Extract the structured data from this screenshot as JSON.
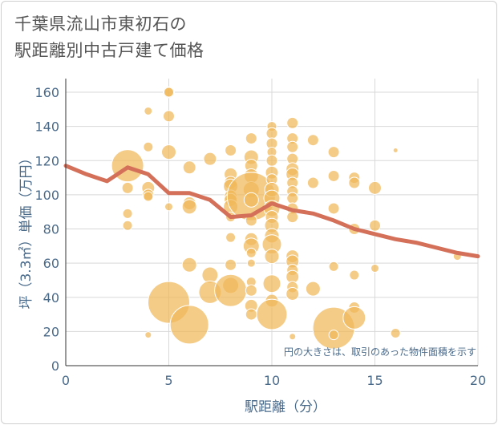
{
  "title_lines": [
    "千葉県流山市東初石の",
    "駅距離別中古戸建て価格"
  ],
  "chart_data": {
    "type": "scatter",
    "xlabel": "駅距離（分）",
    "ylabel": "坪（3.3㎡）単価（万円）",
    "xlim": [
      0,
      20
    ],
    "ylim": [
      0,
      168
    ],
    "x_ticks": [
      "0",
      "5",
      "10",
      "15",
      "20"
    ],
    "y_ticks": [
      "0",
      "20",
      "40",
      "60",
      "80",
      "100",
      "120",
      "140",
      "160"
    ],
    "grid": true,
    "annotation": "円の大きさは、取引のあった物件面積を示す",
    "bubble_color": "#f0b95a",
    "line_color": "#d4705a",
    "bubbles": [
      {
        "x": 3,
        "y": 117,
        "s": 20
      },
      {
        "x": 3,
        "y": 104,
        "s": 7
      },
      {
        "x": 3,
        "y": 89,
        "s": 6
      },
      {
        "x": 3,
        "y": 82,
        "s": 6
      },
      {
        "x": 4,
        "y": 149,
        "s": 5
      },
      {
        "x": 4,
        "y": 128,
        "s": 6
      },
      {
        "x": 4,
        "y": 104,
        "s": 8
      },
      {
        "x": 4,
        "y": 100,
        "s": 7
      },
      {
        "x": 4,
        "y": 99,
        "s": 6
      },
      {
        "x": 4,
        "y": 18,
        "s": 4
      },
      {
        "x": 5,
        "y": 160,
        "s": 7
      },
      {
        "x": 5,
        "y": 160,
        "s": 6
      },
      {
        "x": 5,
        "y": 146,
        "s": 7
      },
      {
        "x": 5,
        "y": 125,
        "s": 9
      },
      {
        "x": 5,
        "y": 93,
        "s": 5
      },
      {
        "x": 5,
        "y": 37,
        "s": 26
      },
      {
        "x": 6,
        "y": 116,
        "s": 8
      },
      {
        "x": 6,
        "y": 95,
        "s": 8
      },
      {
        "x": 6,
        "y": 93,
        "s": 9
      },
      {
        "x": 6,
        "y": 59,
        "s": 9
      },
      {
        "x": 6,
        "y": 24,
        "s": 24
      },
      {
        "x": 7,
        "y": 121,
        "s": 8
      },
      {
        "x": 7,
        "y": 53,
        "s": 10
      },
      {
        "x": 7,
        "y": 43,
        "s": 14
      },
      {
        "x": 8,
        "y": 126,
        "s": 7
      },
      {
        "x": 8,
        "y": 112,
        "s": 8
      },
      {
        "x": 8,
        "y": 107,
        "s": 8
      },
      {
        "x": 8,
        "y": 105,
        "s": 9
      },
      {
        "x": 8,
        "y": 99,
        "s": 8
      },
      {
        "x": 8,
        "y": 97,
        "s": 8
      },
      {
        "x": 8,
        "y": 93,
        "s": 9
      },
      {
        "x": 8,
        "y": 87,
        "s": 6
      },
      {
        "x": 8,
        "y": 75,
        "s": 6
      },
      {
        "x": 8,
        "y": 59,
        "s": 7
      },
      {
        "x": 8,
        "y": 47,
        "s": 10
      },
      {
        "x": 8,
        "y": 44,
        "s": 20
      },
      {
        "x": 9,
        "y": 133,
        "s": 7
      },
      {
        "x": 9,
        "y": 122,
        "s": 9
      },
      {
        "x": 9,
        "y": 117,
        "s": 8
      },
      {
        "x": 9,
        "y": 111,
        "s": 9
      },
      {
        "x": 9,
        "y": 103,
        "s": 10
      },
      {
        "x": 9,
        "y": 99,
        "s": 30
      },
      {
        "x": 9,
        "y": 97,
        "s": 9
      },
      {
        "x": 9,
        "y": 85,
        "s": 7
      },
      {
        "x": 9,
        "y": 74,
        "s": 8
      },
      {
        "x": 9,
        "y": 70,
        "s": 10
      },
      {
        "x": 9,
        "y": 66,
        "s": 6
      },
      {
        "x": 9,
        "y": 60,
        "s": 5
      },
      {
        "x": 9,
        "y": 49,
        "s": 6
      },
      {
        "x": 9,
        "y": 44,
        "s": 7
      },
      {
        "x": 9,
        "y": 35,
        "s": 8
      },
      {
        "x": 9,
        "y": 30,
        "s": 7
      },
      {
        "x": 10,
        "y": 140,
        "s": 6
      },
      {
        "x": 10,
        "y": 136,
        "s": 7
      },
      {
        "x": 10,
        "y": 130,
        "s": 7
      },
      {
        "x": 10,
        "y": 125,
        "s": 6
      },
      {
        "x": 10,
        "y": 120,
        "s": 7
      },
      {
        "x": 10,
        "y": 113,
        "s": 8
      },
      {
        "x": 10,
        "y": 109,
        "s": 7
      },
      {
        "x": 10,
        "y": 103,
        "s": 9
      },
      {
        "x": 10,
        "y": 98,
        "s": 10
      },
      {
        "x": 10,
        "y": 92,
        "s": 10
      },
      {
        "x": 10,
        "y": 87,
        "s": 8
      },
      {
        "x": 10,
        "y": 82,
        "s": 9
      },
      {
        "x": 10,
        "y": 76,
        "s": 9
      },
      {
        "x": 10,
        "y": 71,
        "s": 12
      },
      {
        "x": 10,
        "y": 64,
        "s": 9
      },
      {
        "x": 10,
        "y": 48,
        "s": 11
      },
      {
        "x": 10,
        "y": 38,
        "s": 8
      },
      {
        "x": 10,
        "y": 30,
        "s": 19
      },
      {
        "x": 11,
        "y": 142,
        "s": 7
      },
      {
        "x": 11,
        "y": 133,
        "s": 7
      },
      {
        "x": 11,
        "y": 128,
        "s": 7
      },
      {
        "x": 11,
        "y": 121,
        "s": 7
      },
      {
        "x": 11,
        "y": 115,
        "s": 8
      },
      {
        "x": 11,
        "y": 112,
        "s": 8
      },
      {
        "x": 11,
        "y": 107,
        "s": 7
      },
      {
        "x": 11,
        "y": 102,
        "s": 7
      },
      {
        "x": 11,
        "y": 98,
        "s": 7
      },
      {
        "x": 11,
        "y": 92,
        "s": 7
      },
      {
        "x": 11,
        "y": 87,
        "s": 7
      },
      {
        "x": 11,
        "y": 64,
        "s": 8
      },
      {
        "x": 11,
        "y": 61,
        "s": 8
      },
      {
        "x": 11,
        "y": 56,
        "s": 7
      },
      {
        "x": 11,
        "y": 52,
        "s": 8
      },
      {
        "x": 11,
        "y": 46,
        "s": 7
      },
      {
        "x": 11,
        "y": 42,
        "s": 8
      },
      {
        "x": 11,
        "y": 17,
        "s": 4
      },
      {
        "x": 12,
        "y": 132,
        "s": 7
      },
      {
        "x": 12,
        "y": 107,
        "s": 7
      },
      {
        "x": 12,
        "y": 45,
        "s": 9
      },
      {
        "x": 13,
        "y": 125,
        "s": 7
      },
      {
        "x": 13,
        "y": 111,
        "s": 7
      },
      {
        "x": 13,
        "y": 92,
        "s": 7
      },
      {
        "x": 13,
        "y": 58,
        "s": 6
      },
      {
        "x": 13,
        "y": 22,
        "s": 26
      },
      {
        "x": 13,
        "y": 18,
        "s": 6
      },
      {
        "x": 14,
        "y": 110,
        "s": 7
      },
      {
        "x": 14,
        "y": 107,
        "s": 7
      },
      {
        "x": 14,
        "y": 80,
        "s": 7
      },
      {
        "x": 14,
        "y": 53,
        "s": 6
      },
      {
        "x": 14,
        "y": 34,
        "s": 7
      },
      {
        "x": 14,
        "y": 28,
        "s": 14
      },
      {
        "x": 15,
        "y": 104,
        "s": 8
      },
      {
        "x": 15,
        "y": 82,
        "s": 7
      },
      {
        "x": 15,
        "y": 57,
        "s": 5
      },
      {
        "x": 16,
        "y": 126,
        "s": 3
      },
      {
        "x": 16,
        "y": 19,
        "s": 6
      },
      {
        "x": 19,
        "y": 64,
        "s": 5
      }
    ],
    "trend_line": {
      "x": [
        0,
        1,
        2,
        3,
        4,
        5,
        6,
        7,
        8,
        9,
        10,
        11,
        12,
        13,
        14,
        15,
        16,
        17,
        18,
        19,
        20
      ],
      "y": [
        117,
        112,
        108,
        116,
        112,
        101,
        101,
        97,
        87,
        88,
        95,
        91,
        89,
        85,
        80,
        77,
        74,
        72,
        69,
        66,
        64
      ]
    }
  }
}
